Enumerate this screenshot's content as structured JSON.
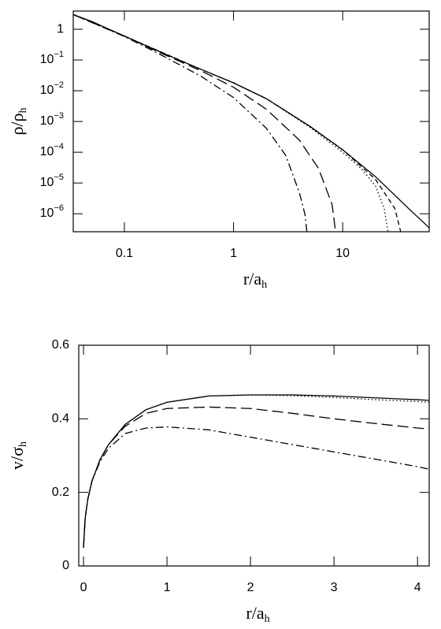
{
  "chart_data": [
    {
      "type": "line",
      "xscale": "log",
      "yscale": "log",
      "xlabel": {
        "text": "r/a",
        "sub": "h"
      },
      "ylabel": {
        "text": "ρ/ρ",
        "sub": "h"
      },
      "xlim": [
        0.034,
        62
      ],
      "ylim": [
        2.6e-07,
        3.9
      ],
      "xticks": [
        0.1,
        1,
        10
      ],
      "yticks": [
        1,
        {
          "value": 0.1,
          "label": "10",
          "sup": "−1"
        },
        {
          "value": 0.01,
          "label": "10",
          "sup": "−2"
        },
        {
          "value": 0.001,
          "label": "10",
          "sup": "−3"
        },
        {
          "value": 0.0001,
          "label": "10",
          "sup": "−4"
        },
        {
          "value": 1e-05,
          "label": "10",
          "sup": "−5"
        },
        {
          "value": 1e-06,
          "label": "10",
          "sup": "−6"
        }
      ],
      "series": [
        {
          "color": "#000000",
          "style": "solid",
          "x": [
            0.034,
            0.05,
            0.1,
            0.2,
            0.5,
            1,
            2,
            5,
            10,
            20,
            40,
            62
          ],
          "values": [
            3.0,
            1.8,
            0.6,
            0.2,
            0.05,
            0.018,
            0.0055,
            0.0007,
            0.00012,
            1.6e-05,
            1.5e-06,
            3.5e-07
          ]
        },
        {
          "color": "#000000",
          "style": "dashed",
          "x": [
            0.034,
            0.1,
            0.5,
            1,
            2,
            5,
            10,
            20,
            30,
            34
          ],
          "values": [
            3.0,
            0.6,
            0.05,
            0.018,
            0.0055,
            0.0007,
            0.00012,
            1.3e-05,
            1.5e-06,
            2.6e-07
          ]
        },
        {
          "color": "#000000",
          "style": "dotted",
          "x": [
            0.034,
            0.1,
            0.5,
            1,
            2,
            5,
            10,
            15,
            20,
            24,
            26
          ],
          "values": [
            3.0,
            0.6,
            0.05,
            0.018,
            0.0055,
            0.00065,
            0.0001,
            2.8e-05,
            8e-06,
            1.5e-06,
            2.6e-07
          ]
        },
        {
          "color": "#000000",
          "style": "longdash",
          "x": [
            0.034,
            0.1,
            0.2,
            0.5,
            1,
            2,
            4,
            6,
            8,
            8.6
          ],
          "values": [
            3.0,
            0.6,
            0.19,
            0.045,
            0.013,
            0.0025,
            0.00025,
            3e-05,
            2e-06,
            2.6e-07
          ]
        },
        {
          "color": "#000000",
          "style": "dashdot",
          "x": [
            0.034,
            0.1,
            0.2,
            0.5,
            1,
            2,
            3,
            4,
            4.5,
            4.7
          ],
          "values": [
            3.0,
            0.58,
            0.17,
            0.03,
            0.006,
            0.0006,
            8e-05,
            5e-06,
            1e-06,
            2.6e-07
          ]
        }
      ]
    },
    {
      "type": "line",
      "xscale": "linear",
      "yscale": "linear",
      "xlabel": {
        "text": "r/a",
        "sub": "h"
      },
      "ylabel": {
        "text": "v/σ",
        "sub": "h"
      },
      "xlim": [
        -0.057,
        4.14
      ],
      "ylim": [
        0,
        0.6
      ],
      "xticks": [
        0,
        1,
        2,
        3,
        4
      ],
      "yticks": [
        0,
        0.2,
        0.4,
        0.6
      ],
      "series": [
        {
          "color": "#000000",
          "style": "solid",
          "x": [
            0,
            0.02,
            0.05,
            0.1,
            0.2,
            0.3,
            0.5,
            0.75,
            1,
            1.5,
            2,
            2.5,
            3,
            3.5,
            4,
            4.14
          ],
          "values": [
            0.05,
            0.13,
            0.18,
            0.23,
            0.29,
            0.33,
            0.385,
            0.425,
            0.445,
            0.462,
            0.465,
            0.465,
            0.462,
            0.457,
            0.452,
            0.45
          ]
        },
        {
          "color": "#000000",
          "style": "dotted",
          "x": [
            0,
            0.02,
            0.05,
            0.1,
            0.2,
            0.3,
            0.5,
            0.75,
            1,
            1.5,
            2,
            2.5,
            3,
            3.5,
            4,
            4.14
          ],
          "values": [
            0.05,
            0.13,
            0.18,
            0.23,
            0.29,
            0.33,
            0.385,
            0.425,
            0.445,
            0.462,
            0.465,
            0.463,
            0.458,
            0.452,
            0.447,
            0.445
          ]
        },
        {
          "color": "#000000",
          "style": "longdash",
          "x": [
            0,
            0.02,
            0.05,
            0.1,
            0.2,
            0.3,
            0.5,
            0.75,
            1,
            1.5,
            2,
            2.5,
            3,
            3.5,
            4,
            4.14
          ],
          "values": [
            0.05,
            0.13,
            0.18,
            0.23,
            0.29,
            0.33,
            0.38,
            0.415,
            0.428,
            0.432,
            0.428,
            0.415,
            0.4,
            0.387,
            0.375,
            0.372
          ]
        },
        {
          "color": "#000000",
          "style": "dashdot",
          "x": [
            0,
            0.02,
            0.05,
            0.1,
            0.2,
            0.3,
            0.5,
            0.75,
            1,
            1.5,
            2,
            2.5,
            3,
            3.5,
            4,
            4.14
          ],
          "values": [
            0.05,
            0.13,
            0.18,
            0.23,
            0.285,
            0.32,
            0.36,
            0.375,
            0.378,
            0.37,
            0.35,
            0.33,
            0.31,
            0.29,
            0.27,
            0.263
          ]
        }
      ]
    }
  ]
}
